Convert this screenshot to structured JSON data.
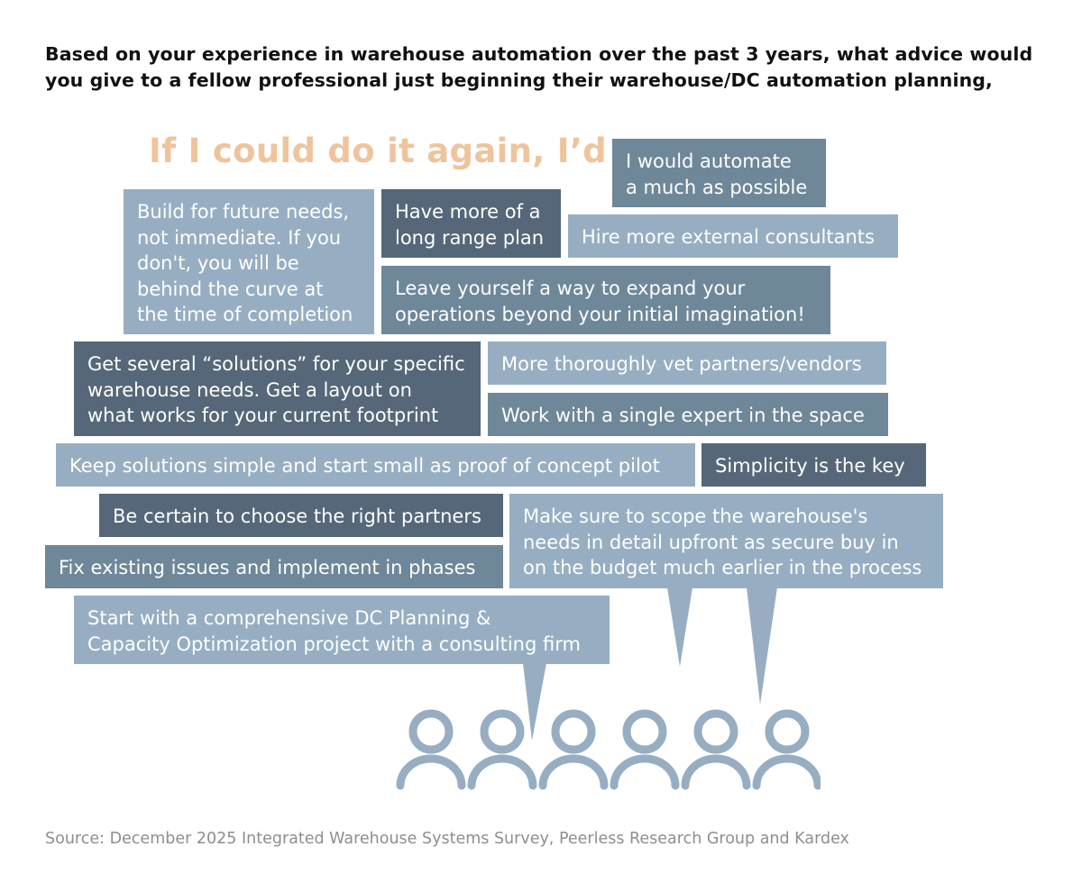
{
  "question": "Based on your experience in warehouse automation over the past 3 years, what advice would you give to a fellow professional just beginning their warehouse/DC automation planning,",
  "lead": "If I could do it again, I’d …",
  "responses": [
    {
      "lines": [
        "I would automate",
        "a much as possible"
      ]
    },
    {
      "lines": [
        "Build for future needs,",
        "not immediate. If you",
        "don't, you will be",
        "behind the curve at",
        "the time of completion"
      ]
    },
    {
      "lines": [
        "Have more of a",
        "long range plan"
      ]
    },
    {
      "lines": [
        "Hire more external consultants"
      ]
    },
    {
      "lines": [
        "Leave yourself a way to expand your",
        "operations beyond your initial imagination!"
      ]
    },
    {
      "lines": [
        "Get several “solutions” for your specific",
        "warehouse needs. Get a layout on",
        "what works for your current footprint"
      ]
    },
    {
      "lines": [
        "More thoroughly vet partners/vendors"
      ]
    },
    {
      "lines": [
        "Work with a single expert in the space"
      ]
    },
    {
      "lines": [
        "Keep solutions simple and start small as proof of concept pilot"
      ]
    },
    {
      "lines": [
        "Simplicity is the key"
      ]
    },
    {
      "lines": [
        "Be certain to choose the right partners"
      ]
    },
    {
      "lines": [
        "Make sure to scope the warehouse's",
        "needs in detail upfront as secure buy in",
        "on the budget much earlier in the process"
      ]
    },
    {
      "lines": [
        "Fix existing issues and implement in phases"
      ]
    },
    {
      "lines": [
        "Start with a comprehensive DC Planning &",
        "Capacity Optimization project with a consulting firm"
      ]
    }
  ],
  "people": {
    "icon": "person-icon",
    "count": 6,
    "color": "#97aec2"
  },
  "source": "Source: December 2025 Integrated Warehouse Systems Survey, Peerless Research Group and Kardex"
}
